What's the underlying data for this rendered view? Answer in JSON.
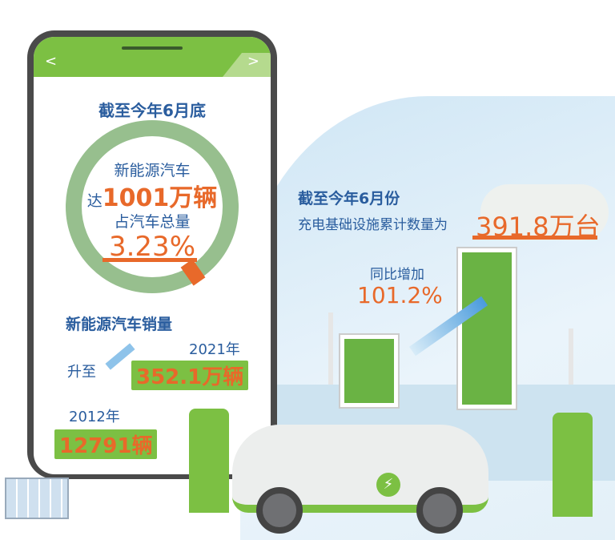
{
  "phone": {
    "nav": {
      "back": "<",
      "forward": ">"
    },
    "title": "截至今年6月底",
    "ring": {
      "line1": "新能源汽车",
      "line2_prefix": "达",
      "line2_value": "1001万辆",
      "line3": "占汽车总量",
      "share": "3.23%"
    },
    "sales": {
      "title": "新能源汽车销量",
      "rise": "升至",
      "year_2021": "2021年",
      "value_2021": "352.1万辆",
      "year_2012": "2012年",
      "value_2012": "12791辆"
    }
  },
  "charging": {
    "title": "截至今年6月份",
    "label": "充电基础设施累计数量为",
    "value": "391.8万台",
    "growth_label": "同比增加",
    "growth_value": "101.2%"
  },
  "colors": {
    "green": "#7cc043",
    "ring": "#97bf8e",
    "blue": "#2a5d9e",
    "orange": "#e8692a"
  }
}
